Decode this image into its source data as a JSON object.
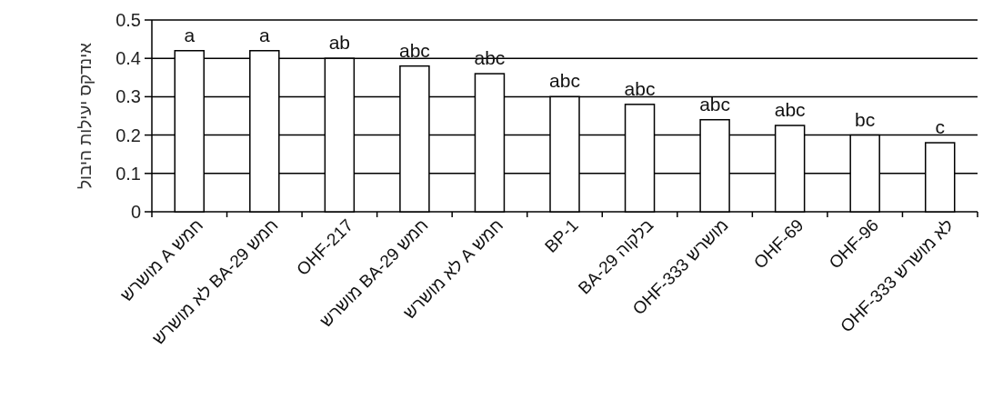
{
  "chart_data": {
    "type": "bar",
    "ylabel": "אינדקס יעילות היבול",
    "categories": [
      "חמש A מושרש",
      "חמש BA-29 לא מושרש",
      "OHF-217",
      "חמש BA-29 מושרש",
      "חמש A לא מושרש",
      "BP-1",
      "בלקוה BA-29",
      "מושרש OHF-333",
      "OHF-69",
      "OHF-96",
      "לא מושרש OHF-333"
    ],
    "values": [
      0.42,
      0.42,
      0.4,
      0.38,
      0.36,
      0.3,
      0.28,
      0.24,
      0.225,
      0.2,
      0.18
    ],
    "color": "#ffffff",
    "ylim": [
      0,
      0.5
    ],
    "yticks": [
      0,
      0.1,
      0.2,
      0.3,
      0.4,
      0.5
    ],
    "grid": "y",
    "annotations": [
      {
        "text": "a",
        "x": "חמש A מושרש",
        "y": 0.42
      },
      {
        "text": "a",
        "x": "חמש BA-29 לא מושרש",
        "y": 0.42
      },
      {
        "text": "ab",
        "x": "OHF-217",
        "y": 0.4
      },
      {
        "text": "abc",
        "x": "חמש BA-29 מושרש",
        "y": 0.38
      },
      {
        "text": "abc",
        "x": "חמש A לא מושרש",
        "y": 0.36
      },
      {
        "text": "abc",
        "x": "BP-1",
        "y": 0.3
      },
      {
        "text": "abc",
        "x": "בלקוה BA-29",
        "y": 0.28
      },
      {
        "text": "abc",
        "x": "מושרש OHF-333",
        "y": 0.24
      },
      {
        "text": "abc",
        "x": "OHF-69",
        "y": 0.225
      },
      {
        "text": "bc",
        "x": "OHF-96",
        "y": 0.2
      },
      {
        "text": "c",
        "x": "לא מושרש OHF-333",
        "y": 0.18
      }
    ]
  }
}
